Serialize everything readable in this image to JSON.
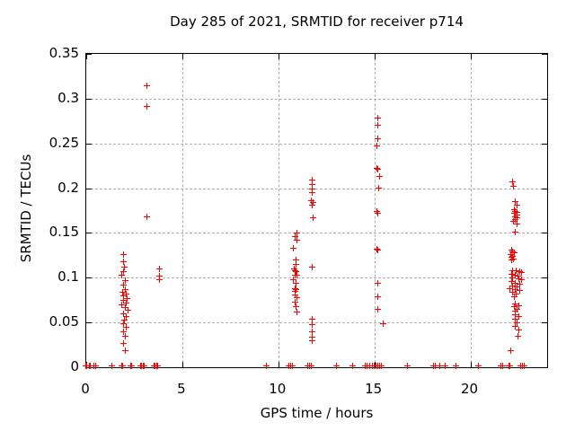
{
  "chart_data": {
    "type": "scatter",
    "title": "Day 285 of 2021, SRMTID for receiver p714",
    "xlabel": "GPS time / hours",
    "ylabel": "SRMTID / TECUs",
    "xlim": [
      0,
      24
    ],
    "ylim": [
      0,
      0.35
    ],
    "xticks": [
      0,
      5,
      10,
      15,
      20
    ],
    "xtick_labels": [
      "0",
      "5",
      "10",
      "15",
      "20"
    ],
    "yticks": [
      0,
      0.05,
      0.1,
      0.15,
      0.2,
      0.25,
      0.3,
      0.35
    ],
    "ytick_labels": [
      "0",
      "0.05",
      "0.1",
      "0.15",
      "0.2",
      "0.25",
      "0.3",
      "0.35"
    ],
    "grid": true,
    "legend": "none",
    "marker": "plus",
    "marker_color": "#ff0000",
    "background_color": "#ffffff",
    "grid_color": "#b0b0b0",
    "series": [
      {
        "name": "SRMTID",
        "color": "#ff0000",
        "points": [
          [
            2.01,
            0.124
          ],
          [
            2.01,
            0.116
          ],
          [
            2.06,
            0.11
          ],
          [
            2.01,
            0.105
          ],
          [
            1.93,
            0.101
          ],
          [
            2.09,
            0.095
          ],
          [
            2.01,
            0.09
          ],
          [
            2.09,
            0.085
          ],
          [
            1.98,
            0.082
          ],
          [
            2.14,
            0.08
          ],
          [
            2.01,
            0.078
          ],
          [
            2.2,
            0.075
          ],
          [
            2.01,
            0.073
          ],
          [
            2.14,
            0.07
          ],
          [
            1.93,
            0.068
          ],
          [
            2.09,
            0.065
          ],
          [
            2.24,
            0.062
          ],
          [
            2.01,
            0.058
          ],
          [
            2.16,
            0.055
          ],
          [
            2.04,
            0.051
          ],
          [
            2.01,
            0.047
          ],
          [
            2.16,
            0.043
          ],
          [
            2.01,
            0.038
          ],
          [
            2.09,
            0.033
          ],
          [
            2.01,
            0.025
          ],
          [
            2.09,
            0.017
          ],
          [
            3.22,
            0.313
          ],
          [
            3.22,
            0.29
          ],
          [
            3.22,
            0.166
          ],
          [
            3.89,
            0.108
          ],
          [
            3.89,
            0.1
          ],
          [
            3.89,
            0.096
          ],
          [
            11.03,
            0.148
          ],
          [
            10.93,
            0.144
          ],
          [
            11.03,
            0.14
          ],
          [
            10.87,
            0.131
          ],
          [
            10.98,
            0.118
          ],
          [
            10.98,
            0.113
          ],
          [
            10.9,
            0.108
          ],
          [
            10.95,
            0.106
          ],
          [
            11.01,
            0.105
          ],
          [
            10.93,
            0.101
          ],
          [
            11.03,
            0.101
          ],
          [
            10.87,
            0.096
          ],
          [
            10.98,
            0.092
          ],
          [
            10.93,
            0.086
          ],
          [
            11.0,
            0.085
          ],
          [
            10.96,
            0.083
          ],
          [
            10.93,
            0.079
          ],
          [
            11.03,
            0.076
          ],
          [
            10.93,
            0.071
          ],
          [
            10.98,
            0.066
          ],
          [
            11.03,
            0.06
          ],
          [
            11.84,
            0.208
          ],
          [
            11.84,
            0.203
          ],
          [
            11.84,
            0.198
          ],
          [
            11.84,
            0.194
          ],
          [
            11.79,
            0.185
          ],
          [
            11.89,
            0.183
          ],
          [
            11.84,
            0.18
          ],
          [
            11.89,
            0.165
          ],
          [
            11.84,
            0.11
          ],
          [
            11.85,
            0.052
          ],
          [
            11.85,
            0.046
          ],
          [
            11.85,
            0.038
          ],
          [
            11.85,
            0.032
          ],
          [
            11.85,
            0.028
          ],
          [
            15.27,
            0.277
          ],
          [
            15.27,
            0.269
          ],
          [
            15.27,
            0.254
          ],
          [
            15.19,
            0.246
          ],
          [
            15.19,
            0.221
          ],
          [
            15.27,
            0.22
          ],
          [
            15.34,
            0.212
          ],
          [
            15.3,
            0.199
          ],
          [
            15.21,
            0.172
          ],
          [
            15.27,
            0.17
          ],
          [
            15.21,
            0.13
          ],
          [
            15.27,
            0.129
          ],
          [
            15.27,
            0.092
          ],
          [
            15.27,
            0.077
          ],
          [
            15.27,
            0.063
          ],
          [
            15.55,
            0.047
          ],
          [
            22.28,
            0.206
          ],
          [
            22.33,
            0.201
          ],
          [
            22.43,
            0.184
          ],
          [
            22.48,
            0.18
          ],
          [
            22.35,
            0.174
          ],
          [
            22.43,
            0.172
          ],
          [
            22.51,
            0.171
          ],
          [
            22.35,
            0.17
          ],
          [
            22.48,
            0.168
          ],
          [
            22.4,
            0.166
          ],
          [
            22.51,
            0.165
          ],
          [
            22.43,
            0.163
          ],
          [
            22.31,
            0.161
          ],
          [
            22.51,
            0.158
          ],
          [
            22.43,
            0.149
          ],
          [
            22.2,
            0.129
          ],
          [
            22.28,
            0.127
          ],
          [
            22.35,
            0.126
          ],
          [
            22.16,
            0.124
          ],
          [
            22.28,
            0.122
          ],
          [
            22.24,
            0.121
          ],
          [
            22.33,
            0.119
          ],
          [
            22.2,
            0.118
          ],
          [
            22.28,
            0.106
          ],
          [
            22.46,
            0.106
          ],
          [
            22.62,
            0.105
          ],
          [
            22.74,
            0.104
          ],
          [
            22.2,
            0.102
          ],
          [
            22.4,
            0.101
          ],
          [
            22.55,
            0.1
          ],
          [
            22.28,
            0.098
          ],
          [
            22.58,
            0.097
          ],
          [
            22.74,
            0.096
          ],
          [
            22.2,
            0.094
          ],
          [
            22.43,
            0.092
          ],
          [
            22.66,
            0.091
          ],
          [
            22.28,
            0.089
          ],
          [
            22.51,
            0.088
          ],
          [
            22.15,
            0.086
          ],
          [
            22.4,
            0.085
          ],
          [
            22.62,
            0.084
          ],
          [
            22.25,
            0.082
          ],
          [
            22.46,
            0.08
          ],
          [
            22.36,
            0.077
          ],
          [
            22.43,
            0.069
          ],
          [
            22.58,
            0.067
          ],
          [
            22.35,
            0.066
          ],
          [
            22.51,
            0.063
          ],
          [
            22.4,
            0.061
          ],
          [
            22.43,
            0.057
          ],
          [
            22.58,
            0.055
          ],
          [
            22.4,
            0.052
          ],
          [
            22.51,
            0.048
          ],
          [
            22.43,
            0.044
          ],
          [
            22.58,
            0.04
          ],
          [
            22.55,
            0.033
          ],
          [
            22.17,
            0.017
          ],
          [
            0.05,
            0
          ],
          [
            0.1,
            0
          ],
          [
            0.25,
            0
          ],
          [
            0.3,
            0
          ],
          [
            0.45,
            0
          ],
          [
            0.55,
            0
          ],
          [
            1.4,
            0
          ],
          [
            1.9,
            0
          ],
          [
            1.95,
            0
          ],
          [
            2.4,
            0
          ],
          [
            2.45,
            0
          ],
          [
            2.9,
            0
          ],
          [
            2.95,
            0
          ],
          [
            3.05,
            0
          ],
          [
            3.1,
            0
          ],
          [
            3.6,
            0
          ],
          [
            3.65,
            0
          ],
          [
            3.75,
            0
          ],
          [
            3.8,
            0
          ],
          [
            9.45,
            0
          ],
          [
            10.6,
            0
          ],
          [
            10.7,
            0
          ],
          [
            10.8,
            0
          ],
          [
            11.6,
            0
          ],
          [
            11.7,
            0
          ],
          [
            11.8,
            0
          ],
          [
            13.1,
            0
          ],
          [
            13.95,
            0
          ],
          [
            14.6,
            0
          ],
          [
            14.7,
            0
          ],
          [
            14.85,
            0
          ],
          [
            14.95,
            0
          ],
          [
            15.05,
            0
          ],
          [
            15.15,
            0
          ],
          [
            15.25,
            0
          ],
          [
            15.35,
            0
          ],
          [
            15.45,
            0
          ],
          [
            16.8,
            0
          ],
          [
            18.15,
            0
          ],
          [
            18.25,
            0
          ],
          [
            18.5,
            0
          ],
          [
            18.75,
            0
          ],
          [
            19.3,
            0
          ],
          [
            20.5,
            0
          ],
          [
            21.65,
            0
          ],
          [
            21.75,
            0
          ],
          [
            22.1,
            0
          ],
          [
            22.15,
            0
          ],
          [
            22.7,
            0
          ],
          [
            22.8,
            0
          ],
          [
            22.9,
            0
          ]
        ]
      }
    ]
  }
}
